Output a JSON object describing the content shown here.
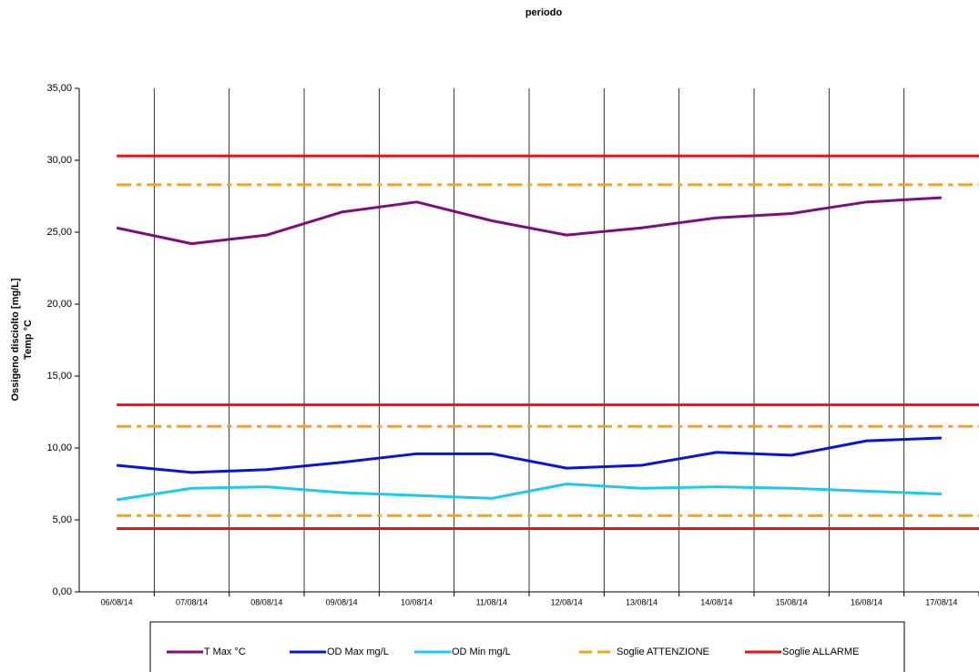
{
  "chart_data": {
    "type": "line",
    "title": "periodo",
    "y_label": [
      "Ossigeno disciolto [mg/L]",
      "Temp °C"
    ],
    "categories": [
      "06/08/14",
      "07/08/14",
      "08/08/14",
      "09/08/14",
      "10/08/14",
      "11/08/14",
      "12/08/14",
      "13/08/14",
      "14/08/14",
      "15/08/14",
      "16/08/14",
      "17/08/14"
    ],
    "series": [
      {
        "name": "T Max °C",
        "color": "#7b0f7b",
        "values": [
          25.3,
          24.2,
          24.8,
          26.4,
          27.1,
          25.8,
          24.8,
          25.3,
          26.0,
          26.3,
          27.1,
          27.4
        ]
      },
      {
        "name": "OD Max mg/L",
        "color": "#0a14d8",
        "values": [
          8.8,
          8.3,
          8.5,
          9.0,
          9.6,
          9.6,
          8.6,
          8.8,
          9.7,
          9.5,
          10.5,
          10.7
        ]
      },
      {
        "name": "OD  Min mg/L",
        "color": "#1ec8f0",
        "values": [
          6.4,
          7.2,
          7.3,
          6.9,
          6.7,
          6.5,
          7.5,
          7.2,
          7.3,
          7.2,
          7.0,
          6.8
        ]
      }
    ],
    "thresholds": [
      {
        "name": "Soglie ATTENZIONE",
        "color": "#f5a21c",
        "dashed": true,
        "levels": [
          28.3,
          11.5,
          5.3
        ]
      },
      {
        "name": "Soglie ALLARME",
        "color": "#f01010",
        "dashed": false,
        "levels": [
          30.3,
          13.0,
          4.4
        ]
      }
    ],
    "ylim": [
      0,
      35
    ],
    "yticks": [
      {
        "value": 0,
        "label": "0,00"
      },
      {
        "value": 5,
        "label": "5,00"
      },
      {
        "value": 10,
        "label": "10,00"
      },
      {
        "value": 15,
        "label": "15,00"
      },
      {
        "value": 20,
        "label": "20,00"
      },
      {
        "value": 25,
        "label": "25,00"
      },
      {
        "value": 30,
        "label": "30,00"
      },
      {
        "value": 35,
        "label": "35,00"
      }
    ],
    "vertical_grid": true
  }
}
